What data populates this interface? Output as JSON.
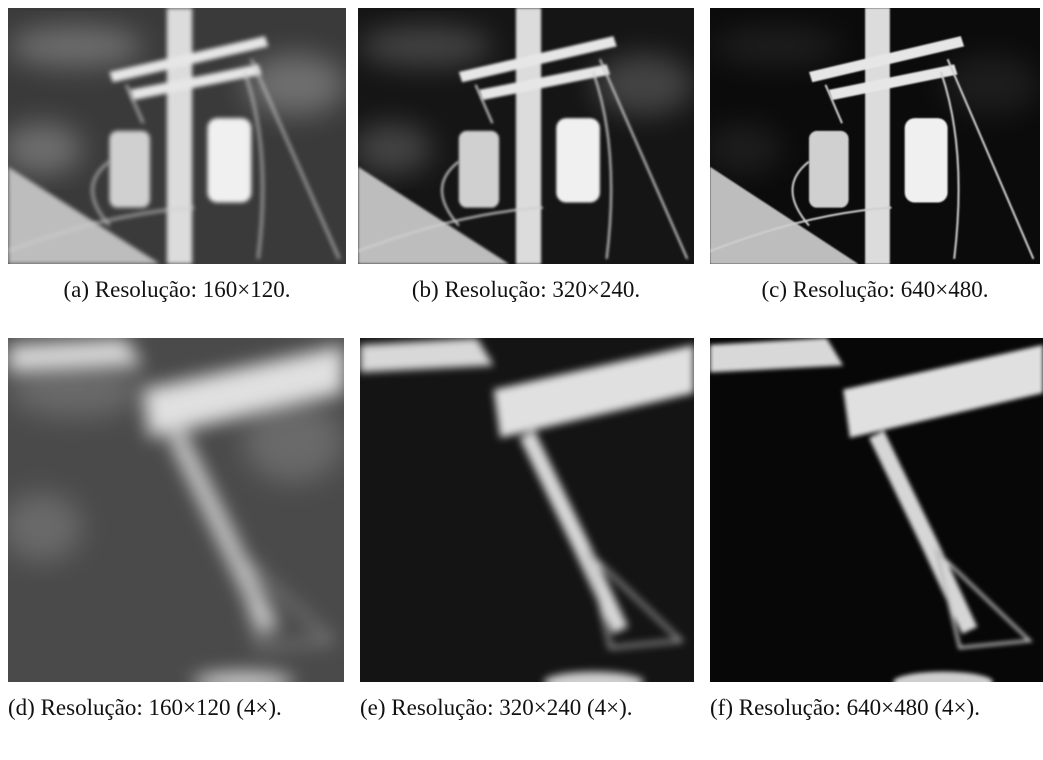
{
  "figures": [
    {
      "label": "(a)",
      "caption": "Resolução: 160×120."
    },
    {
      "label": "(b)",
      "caption": "Resolução: 320×240."
    },
    {
      "label": "(c)",
      "caption": "Resolução: 640×480."
    },
    {
      "label": "(d)",
      "caption": "Resolução: 160×120 (4×)."
    },
    {
      "label": "(e)",
      "caption": "Resolução: 320×240 (4×)."
    },
    {
      "label": "(f)",
      "caption": "Resolução: 640×480 (4×)."
    }
  ]
}
